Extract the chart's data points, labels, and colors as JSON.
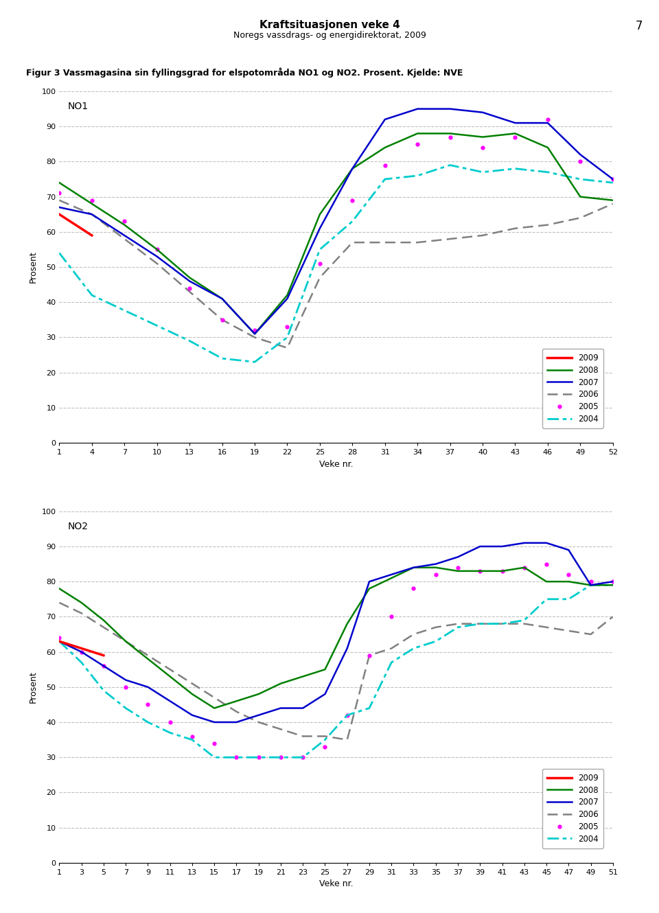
{
  "title": "Kraftsituasjonen veke 4",
  "subtitle": "Noregs vassdrags- og energidirektorat, 2009",
  "page_number": "7",
  "fig_label": "Figur 3 Vassmagasina sin fyllingsgrad for elspotområda NO1 og NO2. Prosent. Kjelde: NVE",
  "no1_weeks": [
    1,
    4,
    7,
    10,
    13,
    16,
    19,
    22,
    25,
    28,
    31,
    34,
    37,
    40,
    43,
    46,
    49,
    52
  ],
  "no1_2009": [
    65,
    59,
    null,
    null,
    null,
    null,
    null,
    null,
    null,
    null,
    null,
    null,
    null,
    null,
    null,
    null,
    null,
    null
  ],
  "no1_2008": [
    74,
    68,
    62,
    55,
    47,
    41,
    31,
    42,
    65,
    78,
    84,
    88,
    88,
    87,
    88,
    84,
    70,
    69
  ],
  "no1_2007": [
    67,
    65,
    59,
    53,
    46,
    41,
    31,
    41,
    61,
    78,
    92,
    95,
    95,
    94,
    91,
    91,
    82,
    75
  ],
  "no1_2006": [
    69,
    65,
    58,
    51,
    43,
    35,
    30,
    27,
    47,
    57,
    57,
    57,
    58,
    59,
    61,
    62,
    64,
    68
  ],
  "no1_2005": [
    71,
    69,
    63,
    55,
    44,
    35,
    32,
    33,
    51,
    69,
    79,
    85,
    87,
    84,
    87,
    92,
    80,
    75
  ],
  "no1_2004": [
    54,
    42,
    null,
    null,
    29,
    24,
    23,
    30,
    55,
    63,
    75,
    76,
    79,
    77,
    78,
    77,
    75,
    74
  ],
  "no2_weeks": [
    1,
    3,
    5,
    7,
    9,
    11,
    13,
    15,
    17,
    19,
    21,
    23,
    25,
    27,
    29,
    31,
    33,
    35,
    37,
    39,
    41,
    43,
    45,
    47,
    49,
    51
  ],
  "no2_2009": [
    63,
    61,
    59,
    null,
    null,
    null,
    null,
    null,
    null,
    null,
    null,
    null,
    null,
    null,
    null,
    null,
    null,
    null,
    null,
    null,
    null,
    null,
    null,
    null,
    null,
    null
  ],
  "no2_2008": [
    78,
    74,
    69,
    63,
    58,
    53,
    48,
    44,
    46,
    48,
    51,
    53,
    55,
    68,
    78,
    81,
    84,
    84,
    83,
    83,
    83,
    84,
    80,
    80,
    79,
    79
  ],
  "no2_2007": [
    63,
    60,
    56,
    52,
    50,
    46,
    42,
    40,
    40,
    42,
    44,
    44,
    48,
    61,
    80,
    82,
    84,
    85,
    87,
    90,
    90,
    91,
    91,
    89,
    79,
    80
  ],
  "no2_2006": [
    74,
    71,
    67,
    63,
    59,
    55,
    51,
    47,
    43,
    40,
    38,
    36,
    36,
    35,
    59,
    61,
    65,
    67,
    68,
    68,
    68,
    68,
    67,
    66,
    65,
    70
  ],
  "no2_2005": [
    64,
    60,
    56,
    50,
    45,
    40,
    36,
    34,
    30,
    30,
    30,
    30,
    33,
    42,
    59,
    70,
    78,
    82,
    84,
    83,
    83,
    84,
    85,
    82,
    80,
    80
  ],
  "no2_2004": [
    63,
    57,
    49,
    44,
    40,
    37,
    35,
    30,
    30,
    30,
    30,
    30,
    35,
    42,
    44,
    57,
    61,
    63,
    67,
    68,
    68,
    69,
    75,
    75,
    79,
    79
  ],
  "color_2009": "#ff0000",
  "color_2008": "#008000",
  "color_2007": "#0000cc",
  "color_2006": "#808080",
  "color_2005": "#ff00ff",
  "color_2004": "#00cccc",
  "ylabel": "Prosent",
  "xlabel": "Veke nr.",
  "ylim": [
    0,
    100
  ],
  "no1_xticks": [
    1,
    4,
    7,
    10,
    13,
    16,
    19,
    22,
    25,
    28,
    31,
    34,
    37,
    40,
    43,
    46,
    49,
    52
  ],
  "no2_xticks": [
    1,
    3,
    5,
    7,
    9,
    11,
    13,
    15,
    17,
    19,
    21,
    23,
    25,
    27,
    29,
    31,
    33,
    35,
    37,
    39,
    41,
    43,
    45,
    47,
    49,
    51
  ]
}
